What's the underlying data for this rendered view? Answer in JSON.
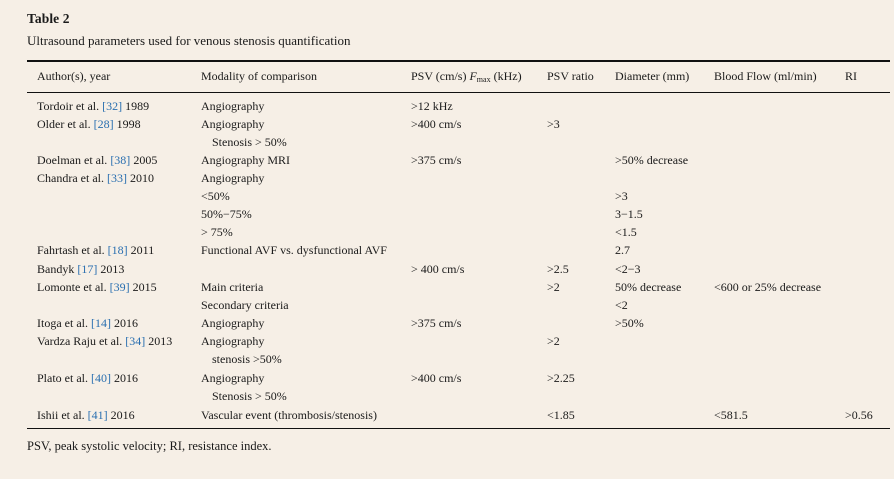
{
  "table_label": "Table 2",
  "caption": "Ultrasound parameters used for venous stenosis quantification",
  "headers": {
    "author": "Author(s), year",
    "modality": "Modality of comparison",
    "psv_prefix": "PSV (cm/s) ",
    "psv_f": "F",
    "psv_sub": "max",
    "psv_suffix": " (kHz)",
    "ratio": "PSV ratio",
    "diameter": "Diameter (mm)",
    "flow": "Blood Flow (ml/min)",
    "ri": "RI"
  },
  "rows": [
    {
      "author": "Tordoir et al. ",
      "ref": "[32]",
      "year": " 1989",
      "modality": "Angiography",
      "psv": ">12 kHz",
      "ratio": "",
      "diameter": "",
      "flow": "",
      "ri": ""
    },
    {
      "author": "Older et al. ",
      "ref": "[28]",
      "year": " 1998",
      "modality": "Angiography",
      "psv": ">400 cm/s",
      "ratio": ">3",
      "diameter": "",
      "flow": "",
      "ri": ""
    },
    {
      "author": "",
      "ref": "",
      "year": "",
      "modality": "Stenosis > 50%",
      "psv": "",
      "ratio": "",
      "diameter": "",
      "flow": "",
      "ri": ""
    },
    {
      "author": "Doelman et al. ",
      "ref": "[38]",
      "year": " 2005",
      "modality": "Angiography MRI",
      "psv": ">375 cm/s",
      "ratio": "",
      "diameter": ">50% decrease",
      "flow": "",
      "ri": ""
    },
    {
      "author": "Chandra et al. ",
      "ref": "[33]",
      "year": " 2010",
      "modality": "Angiography",
      "psv": "",
      "ratio": "",
      "diameter": "",
      "flow": "",
      "ri": ""
    },
    {
      "author": "",
      "ref": "",
      "year": "",
      "modality": "<50%",
      "psv": "",
      "ratio": "",
      "diameter": ">3",
      "flow": "",
      "ri": ""
    },
    {
      "author": "",
      "ref": "",
      "year": "",
      "modality": "50%−75%",
      "psv": "",
      "ratio": "",
      "diameter": "3−1.5",
      "flow": "",
      "ri": ""
    },
    {
      "author": "",
      "ref": "",
      "year": "",
      "modality": "> 75%",
      "psv": "",
      "ratio": "",
      "diameter": "<1.5",
      "flow": "",
      "ri": ""
    },
    {
      "author": "Fahrtash et al. ",
      "ref": "[18]",
      "year": " 2011",
      "modality": "Functional AVF vs. dysfunctional AVF",
      "psv": "",
      "ratio": "",
      "diameter": "2.7",
      "flow": "",
      "ri": ""
    },
    {
      "author": "Bandyk ",
      "ref": "[17]",
      "year": " 2013",
      "modality": "",
      "psv": "> 400 cm/s",
      "ratio": ">2.5",
      "diameter": "<2−3",
      "flow": "",
      "ri": ""
    },
    {
      "author": "Lomonte et al. ",
      "ref": "[39]",
      "year": " 2015",
      "modality": "Main criteria",
      "psv": "",
      "ratio": ">2",
      "diameter": "50% decrease",
      "flow": "<600 or 25% decrease",
      "ri": ""
    },
    {
      "author": "",
      "ref": "",
      "year": "",
      "modality": "Secondary criteria",
      "psv": "",
      "ratio": "",
      "diameter": "<2",
      "flow": "",
      "ri": ""
    },
    {
      "author": "Itoga et al. ",
      "ref": "[14]",
      "year": " 2016",
      "modality": "Angiography",
      "psv": ">375 cm/s",
      "ratio": "",
      "diameter": ">50%",
      "flow": "",
      "ri": ""
    },
    {
      "author": "Vardza Raju et al. ",
      "ref": "[34]",
      "year": " 2013",
      "modality": "Angiography",
      "psv": "",
      "ratio": ">2",
      "diameter": "",
      "flow": "",
      "ri": ""
    },
    {
      "author": "",
      "ref": "",
      "year": "",
      "modality": "stenosis >50%",
      "psv": "",
      "ratio": "",
      "diameter": "",
      "flow": "",
      "ri": ""
    },
    {
      "author": "Plato et al. ",
      "ref": "[40]",
      "year": " 2016",
      "modality": "Angiography",
      "psv": ">400 cm/s",
      "ratio": ">2.25",
      "diameter": "",
      "flow": "",
      "ri": ""
    },
    {
      "author": "",
      "ref": "",
      "year": "",
      "modality": "Stenosis > 50%",
      "psv": "",
      "ratio": "",
      "diameter": "",
      "flow": "",
      "ri": ""
    },
    {
      "author": "Ishii et al. ",
      "ref": "[41]",
      "year": " 2016",
      "modality": "Vascular event (thrombosis/stenosis)",
      "psv": "",
      "ratio": "<1.85",
      "diameter": "",
      "flow": "<581.5",
      "ri": ">0.56"
    }
  ],
  "footnote": "PSV, peak systolic velocity; RI, resistance index.",
  "colors": {
    "background": "#f6efe6",
    "text": "#1a1a1a",
    "link": "#2a6fb0"
  }
}
